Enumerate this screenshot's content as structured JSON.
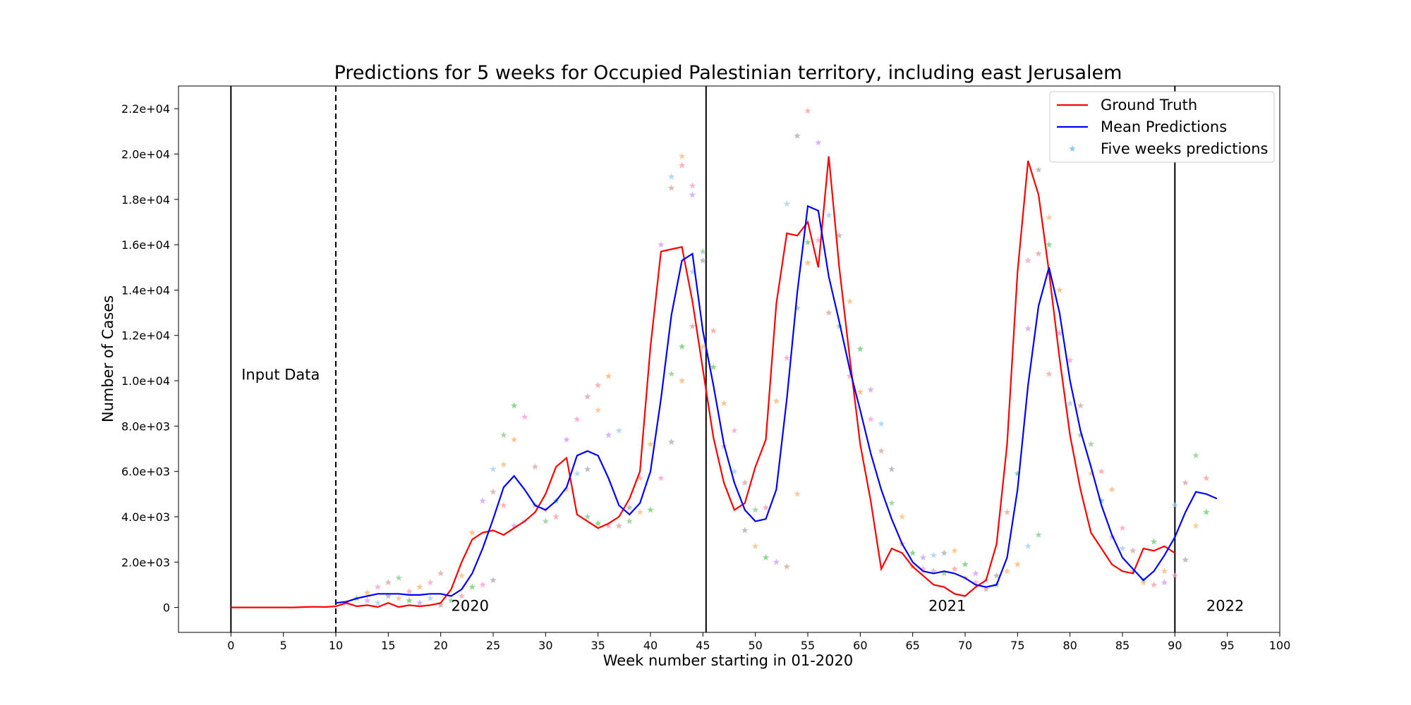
{
  "chart_data": {
    "type": "line",
    "title": "Predictions for 5 weeks for Occupied Palestinian territory, including east Jerusalem",
    "xlabel": "Week number starting in 01-2020",
    "ylabel": "Number of Cases",
    "xlim": [
      -5,
      100
    ],
    "ylim": [
      -1100,
      23000
    ],
    "x_ticks": [
      0,
      5,
      10,
      15,
      20,
      25,
      30,
      35,
      40,
      45,
      50,
      55,
      60,
      65,
      70,
      75,
      80,
      85,
      90,
      95,
      100
    ],
    "y_ticks": [
      0,
      2000,
      4000,
      6000,
      8000,
      10000,
      12000,
      14000,
      16000,
      18000,
      20000,
      22000
    ],
    "y_tick_labels": [
      "0",
      "2.0e+03",
      "4.0e+03",
      "6.0e+03",
      "8.0e+03",
      "1.0e+04",
      "1.2e+04",
      "1.4e+04",
      "1.6e+04",
      "1.8e+04",
      "2.0e+04",
      "2.2e+04"
    ],
    "legend_position": "top-right",
    "legend": [
      {
        "label": "Ground Truth",
        "color": "#ff0000",
        "kind": "line"
      },
      {
        "label": "Mean Predictions",
        "color": "#0000ff",
        "kind": "line"
      },
      {
        "label": "Five weeks predictions",
        "color": "#87ceeb",
        "kind": "star"
      }
    ],
    "vlines": [
      {
        "x": 0,
        "style": "solid"
      },
      {
        "x": 10,
        "style": "dashed"
      },
      {
        "x": 45.3,
        "style": "solid"
      },
      {
        "x": 90,
        "style": "solid"
      }
    ],
    "annotations": [
      {
        "text": "Input Data",
        "x": 1,
        "y": 10200
      },
      {
        "text": "2020",
        "x": 21,
        "y": 0
      },
      {
        "text": "2021",
        "x": 66.5,
        "y": 0
      },
      {
        "text": "2022",
        "x": 93,
        "y": 0
      }
    ],
    "series": [
      {
        "name": "Ground Truth",
        "color": "#ff0000",
        "x": [
          0,
          1,
          2,
          3,
          4,
          5,
          6,
          7,
          8,
          9,
          10,
          11,
          12,
          13,
          14,
          15,
          16,
          17,
          18,
          19,
          20,
          21,
          22,
          23,
          24,
          25,
          26,
          27,
          28,
          29,
          30,
          31,
          32,
          33,
          34,
          35,
          36,
          37,
          38,
          39,
          40,
          41,
          42,
          43,
          44,
          45,
          46,
          47,
          48,
          49,
          50,
          51,
          52,
          53,
          54,
          55,
          56,
          57,
          58,
          59,
          60,
          61,
          62,
          63,
          64,
          65,
          66,
          67,
          68,
          69,
          70,
          71,
          72,
          73,
          74,
          75,
          76,
          77,
          78,
          79,
          80,
          81,
          82,
          83,
          84,
          85,
          86,
          87,
          88,
          89,
          90
        ],
        "values": [
          0,
          0,
          0,
          0,
          0,
          0,
          0,
          20,
          30,
          20,
          50,
          200,
          50,
          100,
          20,
          200,
          20,
          100,
          50,
          100,
          200,
          800,
          2000,
          3000,
          3300,
          3400,
          3200,
          3500,
          3800,
          4200,
          5000,
          6200,
          6600,
          4100,
          3800,
          3500,
          3700,
          4000,
          4800,
          6000,
          11500,
          15700,
          15800,
          15900,
          13500,
          10500,
          7500,
          5500,
          4300,
          4600,
          6200,
          7400,
          13400,
          16500,
          16400,
          17000,
          15000,
          19900,
          15000,
          11000,
          7200,
          4700,
          1700,
          2600,
          2400,
          1800,
          1400,
          1000,
          900,
          600,
          500,
          900,
          1200,
          2800,
          7200,
          14800,
          19700,
          18200,
          14800,
          11000,
          7600,
          5200,
          3300,
          2600,
          1900,
          1600,
          1500,
          2600,
          2500,
          2700,
          2400
        ]
      },
      {
        "name": "Mean Predictions",
        "color": "#0000ff",
        "x": [
          10,
          11,
          12,
          13,
          14,
          15,
          16,
          17,
          18,
          19,
          20,
          21,
          22,
          23,
          24,
          25,
          26,
          27,
          28,
          29,
          30,
          31,
          32,
          33,
          34,
          35,
          36,
          37,
          38,
          39,
          40,
          41,
          42,
          43,
          44,
          45,
          46,
          47,
          48,
          49,
          50,
          51,
          52,
          53,
          54,
          55,
          56,
          57,
          58,
          59,
          60,
          61,
          62,
          63,
          64,
          65,
          66,
          67,
          68,
          69,
          70,
          71,
          72,
          73,
          74,
          75,
          76,
          77,
          78,
          79,
          80,
          81,
          82,
          83,
          84,
          85,
          86,
          87,
          88,
          89,
          90,
          91,
          92,
          93,
          94
        ],
        "values": [
          200,
          250,
          400,
          500,
          600,
          600,
          600,
          550,
          550,
          600,
          600,
          500,
          800,
          1500,
          2600,
          3900,
          5300,
          5800,
          5200,
          4500,
          4300,
          4700,
          5300,
          6700,
          6900,
          6700,
          5700,
          4500,
          4100,
          4600,
          6000,
          9200,
          12900,
          15300,
          15600,
          12200,
          9800,
          7200,
          5500,
          4300,
          3800,
          3900,
          5200,
          9200,
          13900,
          17700,
          17500,
          14600,
          12600,
          10500,
          8700,
          6800,
          5200,
          3900,
          2800,
          2000,
          1600,
          1500,
          1600,
          1500,
          1300,
          1000,
          900,
          1000,
          2200,
          5200,
          9800,
          13300,
          15000,
          13000,
          10000,
          7800,
          6200,
          4500,
          3200,
          2200,
          1700,
          1200,
          1600,
          2300,
          3100,
          4200,
          5100,
          5000,
          4800
        ]
      },
      {
        "name": "Five weeks predictions",
        "color": "#87ceeb",
        "kind": "scatter",
        "points": [
          [
            11,
            200
          ],
          [
            12,
            400
          ],
          [
            13,
            650
          ],
          [
            13,
            300
          ],
          [
            14,
            900
          ],
          [
            14,
            200
          ],
          [
            15,
            1100
          ],
          [
            15,
            500
          ],
          [
            16,
            1300
          ],
          [
            16,
            400
          ],
          [
            17,
            700
          ],
          [
            17,
            300
          ],
          [
            18,
            900
          ],
          [
            18,
            200
          ],
          [
            19,
            1100
          ],
          [
            19,
            400
          ],
          [
            20,
            1500
          ],
          [
            20,
            100
          ],
          [
            21,
            300
          ],
          [
            22,
            1400
          ],
          [
            22,
            500
          ],
          [
            23,
            900
          ],
          [
            23,
            3300
          ],
          [
            24,
            4700
          ],
          [
            24,
            1000
          ],
          [
            25,
            6100
          ],
          [
            25,
            5100
          ],
          [
            25,
            1200
          ],
          [
            26,
            7600
          ],
          [
            26,
            6300
          ],
          [
            26,
            4500
          ],
          [
            27,
            8900
          ],
          [
            27,
            7400
          ],
          [
            27,
            3600
          ],
          [
            28,
            8400
          ],
          [
            28,
            3800
          ],
          [
            29,
            6200
          ],
          [
            29,
            4500
          ],
          [
            30,
            3800
          ],
          [
            30,
            4300
          ],
          [
            31,
            4000
          ],
          [
            31,
            4700
          ],
          [
            32,
            5200
          ],
          [
            32,
            7400
          ],
          [
            33,
            8300
          ],
          [
            33,
            5900
          ],
          [
            34,
            9300
          ],
          [
            34,
            6100
          ],
          [
            34,
            4000
          ],
          [
            35,
            8700
          ],
          [
            35,
            9800
          ],
          [
            35,
            3700
          ],
          [
            36,
            10200
          ],
          [
            36,
            7600
          ],
          [
            36,
            3600
          ],
          [
            37,
            7800
          ],
          [
            37,
            3600
          ],
          [
            38,
            4400
          ],
          [
            38,
            3800
          ],
          [
            39,
            4200
          ],
          [
            39,
            5700
          ],
          [
            40,
            4300
          ],
          [
            40,
            7200
          ],
          [
            41,
            16000
          ],
          [
            41,
            5700
          ],
          [
            42,
            19000
          ],
          [
            42,
            18500
          ],
          [
            42,
            7300
          ],
          [
            42,
            10300
          ],
          [
            43,
            19900
          ],
          [
            43,
            19500
          ],
          [
            43,
            11500
          ],
          [
            43,
            10000
          ],
          [
            44,
            18200
          ],
          [
            44,
            18600
          ],
          [
            44,
            14800
          ],
          [
            44,
            12400
          ],
          [
            45,
            15300
          ],
          [
            45,
            15700
          ],
          [
            45,
            11500
          ],
          [
            46,
            12200
          ],
          [
            46,
            10600
          ],
          [
            47,
            9000
          ],
          [
            47,
            7100
          ],
          [
            48,
            7800
          ],
          [
            48,
            6000
          ],
          [
            49,
            5500
          ],
          [
            49,
            3400
          ],
          [
            50,
            4300
          ],
          [
            50,
            2700
          ],
          [
            51,
            4400
          ],
          [
            51,
            2200
          ],
          [
            52,
            9100
          ],
          [
            52,
            2000
          ],
          [
            53,
            11000
          ],
          [
            53,
            17800
          ],
          [
            53,
            1800
          ],
          [
            54,
            20800
          ],
          [
            54,
            13200
          ],
          [
            54,
            5000
          ],
          [
            55,
            21900
          ],
          [
            55,
            16100
          ],
          [
            55,
            15200
          ],
          [
            56,
            20500
          ],
          [
            56,
            16200
          ],
          [
            57,
            17300
          ],
          [
            57,
            13000
          ],
          [
            58,
            16400
          ],
          [
            58,
            12400
          ],
          [
            59,
            13500
          ],
          [
            59,
            10200
          ],
          [
            60,
            11400
          ],
          [
            60,
            9500
          ],
          [
            61,
            9600
          ],
          [
            61,
            8300
          ],
          [
            62,
            8100
          ],
          [
            62,
            6900
          ],
          [
            63,
            6100
          ],
          [
            63,
            4600
          ],
          [
            64,
            4000
          ],
          [
            64,
            2800
          ],
          [
            65,
            2400
          ],
          [
            65,
            1800
          ],
          [
            66,
            2200
          ],
          [
            66,
            1700
          ],
          [
            67,
            2300
          ],
          [
            67,
            1600
          ],
          [
            68,
            2400
          ],
          [
            68,
            1500
          ],
          [
            69,
            2500
          ],
          [
            69,
            1700
          ],
          [
            70,
            1900
          ],
          [
            70,
            1300
          ],
          [
            71,
            1500
          ],
          [
            71,
            1100
          ],
          [
            72,
            1200
          ],
          [
            72,
            800
          ],
          [
            73,
            1400
          ],
          [
            73,
            1000
          ],
          [
            74,
            1600
          ],
          [
            74,
            4200
          ],
          [
            75,
            5900
          ],
          [
            75,
            1900
          ],
          [
            76,
            12300
          ],
          [
            76,
            15300
          ],
          [
            76,
            2700
          ],
          [
            77,
            15600
          ],
          [
            77,
            19300
          ],
          [
            77,
            3200
          ],
          [
            78,
            17200
          ],
          [
            78,
            10300
          ],
          [
            78,
            16000
          ],
          [
            79,
            14000
          ],
          [
            79,
            12100
          ],
          [
            80,
            10900
          ],
          [
            80,
            9000
          ],
          [
            81,
            8900
          ],
          [
            81,
            7600
          ],
          [
            82,
            7200
          ],
          [
            82,
            5900
          ],
          [
            83,
            6000
          ],
          [
            83,
            4700
          ],
          [
            84,
            5200
          ],
          [
            84,
            3100
          ],
          [
            85,
            3500
          ],
          [
            85,
            2600
          ],
          [
            86,
            2500
          ],
          [
            86,
            1600
          ],
          [
            87,
            1200
          ],
          [
            87,
            1100
          ],
          [
            88,
            1000
          ],
          [
            88,
            2900
          ],
          [
            89,
            1600
          ],
          [
            89,
            1100
          ],
          [
            90,
            1400
          ],
          [
            90,
            4500
          ],
          [
            91,
            5500
          ],
          [
            91,
            2100
          ],
          [
            92,
            6700
          ],
          [
            92,
            3600
          ],
          [
            93,
            5700
          ],
          [
            93,
            4200
          ]
        ]
      }
    ]
  }
}
